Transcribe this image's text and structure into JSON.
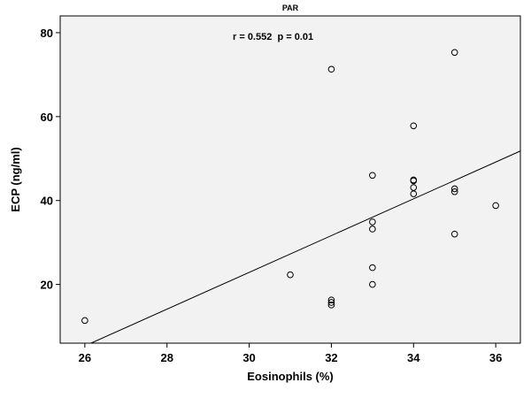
{
  "chart_data": {
    "type": "scatter",
    "title": "PAR",
    "annotation": "r = 0.552  p = 0.01",
    "xlabel": "Eosinophils (%)",
    "ylabel": "ECP (ng/ml)",
    "xlim": [
      25.4,
      36.6
    ],
    "ylim": [
      6,
      84
    ],
    "xticks": [
      26,
      28,
      30,
      32,
      34,
      36
    ],
    "yticks": [
      20,
      40,
      60,
      80
    ],
    "grid": false,
    "background": "#f2f2f2",
    "points": [
      {
        "x": 26,
        "y": 11.4
      },
      {
        "x": 31,
        "y": 22.3
      },
      {
        "x": 32,
        "y": 71.3
      },
      {
        "x": 32,
        "y": 16.3
      },
      {
        "x": 32,
        "y": 15.7
      },
      {
        "x": 32,
        "y": 15.1
      },
      {
        "x": 33,
        "y": 46.0
      },
      {
        "x": 33,
        "y": 34.9
      },
      {
        "x": 33,
        "y": 33.2
      },
      {
        "x": 33,
        "y": 24.0
      },
      {
        "x": 33,
        "y": 20.0
      },
      {
        "x": 34,
        "y": 57.8
      },
      {
        "x": 34,
        "y": 44.9
      },
      {
        "x": 34,
        "y": 44.7
      },
      {
        "x": 34,
        "y": 43.1
      },
      {
        "x": 34,
        "y": 41.6
      },
      {
        "x": 35,
        "y": 75.3
      },
      {
        "x": 35,
        "y": 42.8
      },
      {
        "x": 35,
        "y": 42.1
      },
      {
        "x": 35,
        "y": 32.0
      },
      {
        "x": 36,
        "y": 38.8
      }
    ],
    "fit_line": {
      "x": [
        26.15,
        36.6
      ],
      "y": [
        6.0,
        51.8
      ]
    }
  }
}
